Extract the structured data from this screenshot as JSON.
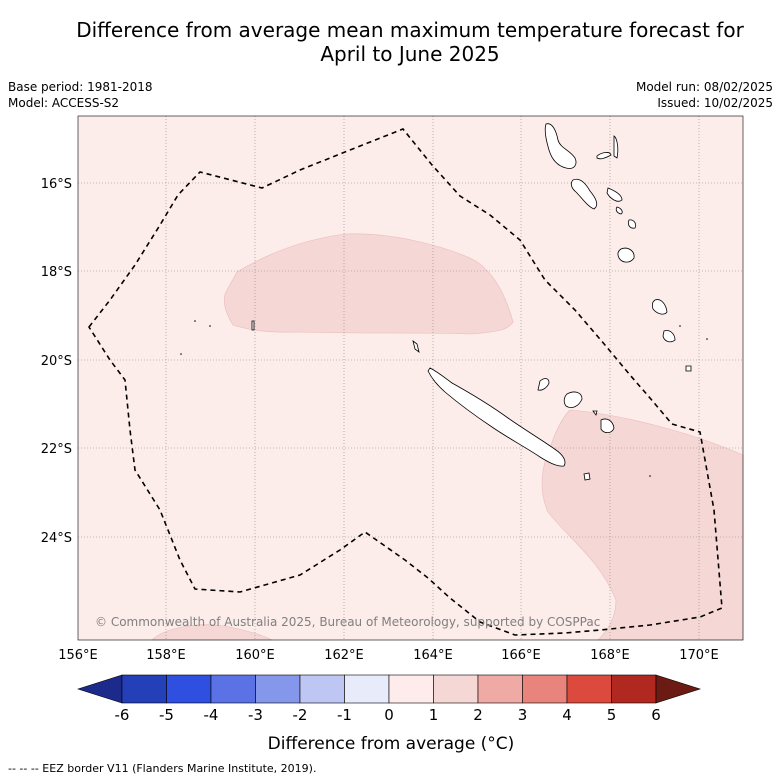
{
  "title_line1": "Difference from average mean maximum temperature forecast for",
  "title_line2": "April to June 2025",
  "base_period": "Base period: 1981-2018",
  "model": "Model: ACCESS-S2",
  "model_run": "Model run: 08/02/2025",
  "issued": "Issued: 10/02/2025",
  "lat_labels": [
    "16°S",
    "18°S",
    "20°S",
    "22°S",
    "24°S"
  ],
  "lon_labels": [
    "156°E",
    "158°E",
    "160°E",
    "162°E",
    "164°E",
    "166°E",
    "168°E",
    "170°E"
  ],
  "copyright": "© Commonwealth of Australia 2025, Bureau of Meteorology, supported by COSPPac",
  "colorbar": {
    "label": "Difference from average (°C)",
    "tick_labels": [
      "-6",
      "-5",
      "-4",
      "-3",
      "-2",
      "-1",
      "0",
      "1",
      "2",
      "3",
      "4",
      "5",
      "6"
    ],
    "colors": [
      "#1c2a8c",
      "#2440b8",
      "#2f4fe0",
      "#5a72e6",
      "#8597eb",
      "#bec6f3",
      "#e8ebfa",
      "#fdeceb",
      "#f5d7d6",
      "#f0aaa6",
      "#e8847c",
      "#dc4a3e",
      "#b0281f",
      "#6b1a14"
    ]
  },
  "footnote": "--  --  -- EEZ border V11 (Flanders Marine Institute, 2019)."
}
